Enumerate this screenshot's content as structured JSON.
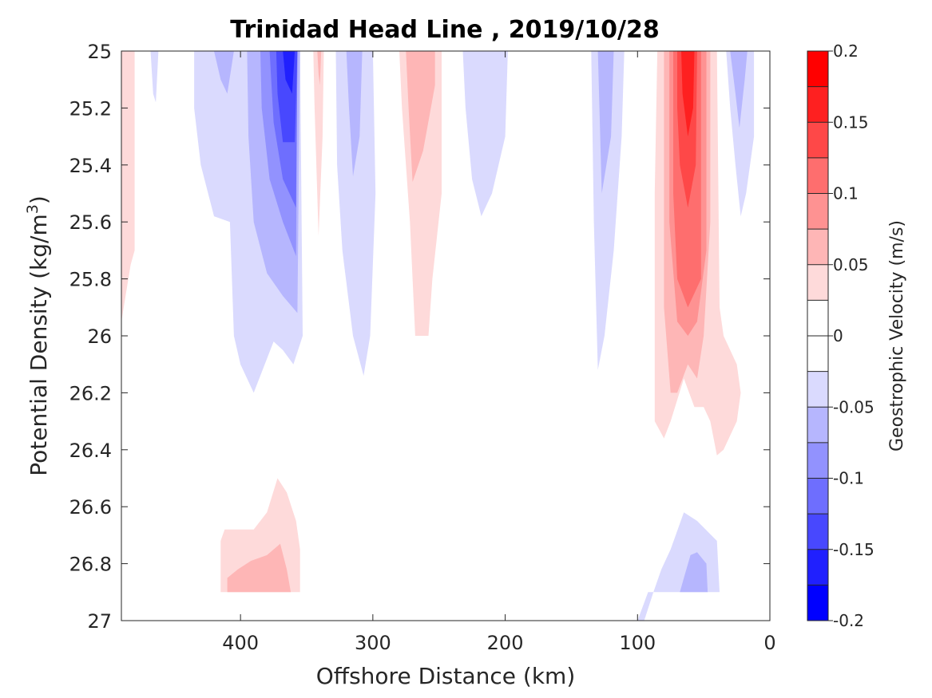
{
  "chart_data": {
    "type": "heatmap",
    "title": "Trinidad Head Line , 2019/10/28",
    "xlabel": "Offshore Distance (km)",
    "ylabel_main": "Potential Density (kg/m",
    "ylabel_sup": "3",
    "ylabel_close": ")",
    "xlim": [
      490,
      0
    ],
    "ylim": [
      25,
      27
    ],
    "x_reversed": true,
    "y_reversed": true,
    "x_ticks": [
      400,
      300,
      200,
      100,
      0
    ],
    "x_tick_labels": [
      "400",
      "300",
      "200",
      "100",
      "0"
    ],
    "y_ticks": [
      25,
      25.2,
      25.4,
      25.6,
      25.8,
      26,
      26.2,
      26.4,
      26.6,
      26.8,
      27
    ],
    "y_tick_labels": [
      "25",
      "25.2",
      "25.4",
      "25.6",
      "25.8",
      "26",
      "26.2",
      "26.4",
      "26.6",
      "26.8",
      "27"
    ],
    "colorbar": {
      "label": "Geostrophic Velocity (m/s)",
      "range": [
        -0.2,
        0.2
      ],
      "ticks": [
        0.2,
        0.15,
        0.1,
        0.05,
        0,
        -0.05,
        -0.1,
        -0.15,
        -0.2
      ],
      "tick_labels": [
        "0.2",
        "0.15",
        "0.1",
        "0.05",
        "0",
        "-0.05",
        "-0.1",
        "-0.15",
        "-0.2"
      ],
      "colors": [
        "#0000ff",
        "#2020fe",
        "#4848fe",
        "#6e6efe",
        "#9292fe",
        "#b6b6fe",
        "#dadafe",
        "#ffffff",
        "#ffffff",
        "#fedada",
        "#feb6b6",
        "#fe9292",
        "#fe6e6e",
        "#fe4848",
        "#fe2020",
        "#ff0000"
      ]
    },
    "contours": [
      {
        "value": 0.025,
        "color": "#fedada",
        "points": [
          [
            490,
            25
          ],
          [
            480,
            25
          ],
          [
            480,
            25.7
          ],
          [
            483,
            25.75
          ],
          [
            490,
            25.95
          ]
        ]
      },
      {
        "value": -0.025,
        "color": "#dadafe",
        "points": [
          [
            468,
            25
          ],
          [
            462,
            25
          ],
          [
            464,
            25.18
          ],
          [
            466,
            25.15
          ]
        ]
      },
      {
        "value": -0.025,
        "color": "#dadafe",
        "points": [
          [
            435,
            25
          ],
          [
            355,
            25
          ],
          [
            353,
            26
          ],
          [
            360,
            26.1
          ],
          [
            368,
            26.05
          ],
          [
            375,
            26.02
          ],
          [
            390,
            26.2
          ],
          [
            400,
            26.1
          ],
          [
            405,
            26
          ],
          [
            408,
            25.6
          ],
          [
            420,
            25.58
          ],
          [
            430,
            25.4
          ],
          [
            435,
            25.2
          ]
        ]
      },
      {
        "value": -0.05,
        "color": "#b6b6fe",
        "points": [
          [
            420,
            25
          ],
          [
            405,
            25
          ],
          [
            410,
            25.15
          ],
          [
            415,
            25.1
          ]
        ]
      },
      {
        "value": -0.05,
        "color": "#b6b6fe",
        "points": [
          [
            395,
            25
          ],
          [
            355,
            25
          ],
          [
            357,
            25.92
          ],
          [
            368,
            25.86
          ],
          [
            380,
            25.78
          ],
          [
            390,
            25.6
          ],
          [
            394,
            25.3
          ]
        ]
      },
      {
        "value": -0.075,
        "color": "#9292fe",
        "points": [
          [
            385,
            25
          ],
          [
            357,
            25
          ],
          [
            358,
            25.72
          ],
          [
            368,
            25.6
          ],
          [
            378,
            25.45
          ],
          [
            384,
            25.2
          ]
        ]
      },
      {
        "value": -0.1,
        "color": "#6e6efe",
        "points": [
          [
            378,
            25
          ],
          [
            357,
            25
          ],
          [
            358,
            25.55
          ],
          [
            368,
            25.45
          ],
          [
            375,
            25.25
          ]
        ]
      },
      {
        "value": -0.125,
        "color": "#4848fe",
        "points": [
          [
            373,
            25
          ],
          [
            357,
            25
          ],
          [
            359,
            25.32
          ],
          [
            368,
            25.32
          ],
          [
            372,
            25.15
          ]
        ]
      },
      {
        "value": -0.15,
        "color": "#2020fe",
        "points": [
          [
            368,
            25
          ],
          [
            359,
            25
          ],
          [
            361,
            25.15
          ],
          [
            366,
            25.1
          ]
        ]
      },
      {
        "value": 0.025,
        "color": "#fedada",
        "points": [
          [
            345,
            25
          ],
          [
            337,
            25
          ],
          [
            338,
            25.3
          ],
          [
            341,
            25.65
          ],
          [
            344,
            25.2
          ]
        ]
      },
      {
        "value": 0.05,
        "color": "#feb6b6",
        "points": [
          [
            342,
            25
          ],
          [
            339,
            25
          ],
          [
            340,
            25.12
          ],
          [
            341,
            25.08
          ]
        ]
      },
      {
        "value": -0.025,
        "color": "#dadafe",
        "points": [
          [
            328,
            25
          ],
          [
            300,
            25
          ],
          [
            298,
            25.5
          ],
          [
            302,
            26
          ],
          [
            307,
            26.14
          ],
          [
            315,
            26
          ],
          [
            323,
            25.7
          ],
          [
            327,
            25.4
          ]
        ]
      },
      {
        "value": -0.05,
        "color": "#b6b6fe",
        "points": [
          [
            320,
            25
          ],
          [
            308,
            25
          ],
          [
            310,
            25.3
          ],
          [
            315,
            25.44
          ],
          [
            318,
            25.2
          ]
        ]
      },
      {
        "value": 0.025,
        "color": "#fedada",
        "points": [
          [
            280,
            25
          ],
          [
            248,
            25
          ],
          [
            248,
            25.5
          ],
          [
            255,
            25.8
          ],
          [
            258,
            26
          ],
          [
            268,
            26
          ],
          [
            272,
            25.6
          ],
          [
            278,
            25.2
          ]
        ]
      },
      {
        "value": 0.05,
        "color": "#feb6b6",
        "points": [
          [
            275,
            25
          ],
          [
            253,
            25
          ],
          [
            253,
            25.12
          ],
          [
            262,
            25.35
          ],
          [
            270,
            25.46
          ],
          [
            273,
            25.2
          ]
        ]
      },
      {
        "value": -0.025,
        "color": "#dadafe",
        "points": [
          [
            232,
            25
          ],
          [
            198,
            25
          ],
          [
            200,
            25.3
          ],
          [
            210,
            25.5
          ],
          [
            218,
            25.58
          ],
          [
            225,
            25.45
          ],
          [
            230,
            25.2
          ]
        ]
      },
      {
        "value": -0.025,
        "color": "#dadafe",
        "points": [
          [
            135,
            25
          ],
          [
            110,
            25
          ],
          [
            112,
            25.3
          ],
          [
            118,
            25.7
          ],
          [
            125,
            26.0
          ],
          [
            130,
            26.12
          ],
          [
            133,
            25.6
          ]
        ]
      },
      {
        "value": -0.05,
        "color": "#b6b6fe",
        "points": [
          [
            130,
            25
          ],
          [
            118,
            25
          ],
          [
            120,
            25.3
          ],
          [
            127,
            25.5
          ]
        ]
      },
      {
        "value": 0.025,
        "color": "#fedada",
        "points": [
          [
            85,
            25
          ],
          [
            40,
            25
          ],
          [
            38,
            25.9
          ],
          [
            35,
            26
          ],
          [
            25,
            26.1
          ],
          [
            22,
            26.2
          ],
          [
            25,
            26.3
          ],
          [
            35,
            26.4
          ],
          [
            40,
            26.42
          ],
          [
            45,
            26.3
          ],
          [
            50,
            26.25
          ],
          [
            57,
            26.25
          ],
          [
            65,
            26.15
          ],
          [
            75,
            26.3
          ],
          [
            80,
            26.36
          ],
          [
            87,
            26.3
          ],
          [
            87,
            25.5
          ]
        ]
      },
      {
        "value": 0.05,
        "color": "#feb6b6",
        "points": [
          [
            80,
            25
          ],
          [
            45,
            25
          ],
          [
            45,
            25.6
          ],
          [
            50,
            26
          ],
          [
            55,
            26.15
          ],
          [
            62,
            26.1
          ],
          [
            70,
            26.2
          ],
          [
            75,
            26.2
          ],
          [
            80,
            25.9
          ]
        ]
      },
      {
        "value": 0.075,
        "color": "#fe9292",
        "points": [
          [
            76,
            25
          ],
          [
            48,
            25
          ],
          [
            48,
            25.7
          ],
          [
            55,
            25.95
          ],
          [
            62,
            26.0
          ],
          [
            70,
            25.95
          ],
          [
            76,
            25.6
          ]
        ]
      },
      {
        "value": 0.1,
        "color": "#fe6e6e",
        "points": [
          [
            73,
            25
          ],
          [
            52,
            25
          ],
          [
            52,
            25.8
          ],
          [
            62,
            25.9
          ],
          [
            70,
            25.8
          ],
          [
            73,
            25.5
          ]
        ]
      },
      {
        "value": 0.125,
        "color": "#fe4848",
        "points": [
          [
            70,
            25
          ],
          [
            55,
            25
          ],
          [
            56,
            25.4
          ],
          [
            62,
            25.55
          ],
          [
            68,
            25.4
          ],
          [
            70,
            25.2
          ]
        ]
      },
      {
        "value": 0.15,
        "color": "#fe2020",
        "points": [
          [
            67,
            25
          ],
          [
            57,
            25
          ],
          [
            58,
            25.2
          ],
          [
            62,
            25.3
          ],
          [
            66,
            25.15
          ]
        ]
      },
      {
        "value": -0.025,
        "color": "#dadafe",
        "points": [
          [
            33,
            25
          ],
          [
            12,
            25
          ],
          [
            12,
            25.3
          ],
          [
            18,
            25.5
          ],
          [
            22,
            25.58
          ],
          [
            26,
            25.4
          ],
          [
            30,
            25.2
          ]
        ]
      },
      {
        "value": -0.05,
        "color": "#b6b6fe",
        "points": [
          [
            30,
            25
          ],
          [
            17,
            25
          ],
          [
            19,
            25.1
          ],
          [
            23,
            25.27
          ],
          [
            26,
            25.15
          ]
        ]
      },
      {
        "value": 0.025,
        "color": "#fedada",
        "points": [
          [
            415,
            26.9
          ],
          [
            355,
            26.9
          ],
          [
            355,
            26.75
          ],
          [
            358,
            26.65
          ],
          [
            365,
            26.55
          ],
          [
            372,
            26.5
          ],
          [
            380,
            26.62
          ],
          [
            390,
            26.68
          ],
          [
            400,
            26.68
          ],
          [
            412,
            26.68
          ],
          [
            415,
            26.72
          ]
        ]
      },
      {
        "value": 0.05,
        "color": "#feb6b6",
        "points": [
          [
            410,
            26.9
          ],
          [
            362,
            26.9
          ],
          [
            365,
            26.82
          ],
          [
            370,
            26.73
          ],
          [
            380,
            26.77
          ],
          [
            392,
            26.79
          ],
          [
            402,
            26.82
          ],
          [
            410,
            26.85
          ]
        ]
      },
      {
        "value": -0.025,
        "color": "#dadafe",
        "points": [
          [
            100,
            27
          ],
          [
            95,
            27
          ],
          [
            88,
            26.9
          ],
          [
            82,
            26.82
          ],
          [
            75,
            26.75
          ],
          [
            65,
            26.62
          ],
          [
            55,
            26.65
          ],
          [
            40,
            26.72
          ],
          [
            38,
            26.9
          ],
          [
            92,
            26.9
          ]
        ]
      },
      {
        "value": -0.05,
        "color": "#b6b6fe",
        "points": [
          [
            68,
            26.9
          ],
          [
            47,
            26.9
          ],
          [
            48,
            26.8
          ],
          [
            55,
            26.76
          ],
          [
            60,
            26.77
          ],
          [
            65,
            26.85
          ]
        ]
      }
    ]
  }
}
